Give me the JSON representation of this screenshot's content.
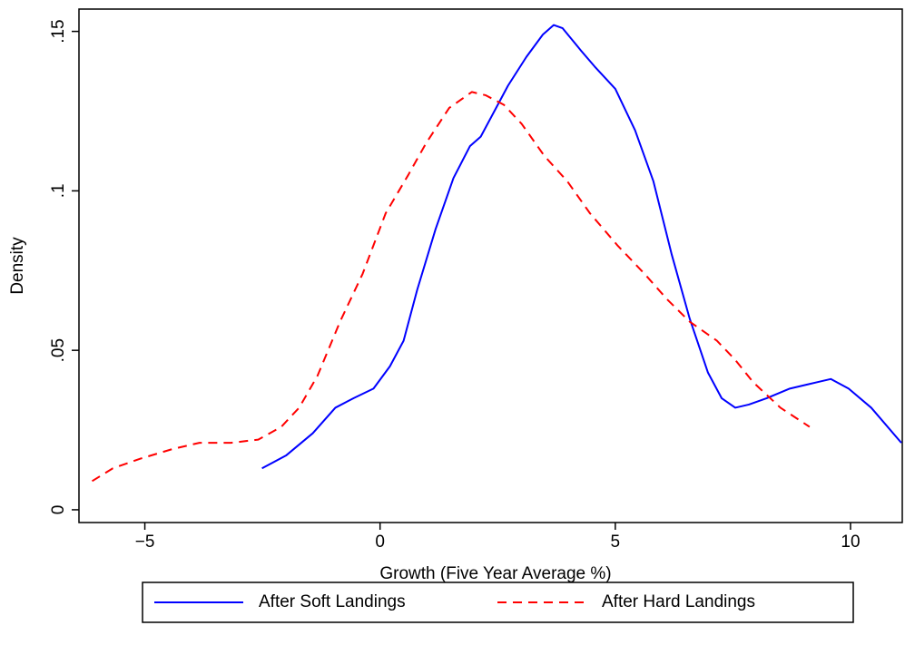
{
  "chart_data": {
    "type": "line",
    "x_label": "Growth (Five Year Average %)",
    "y_label": "Density",
    "xlim": [
      -6.4,
      11.1
    ],
    "ylim": [
      -0.004,
      0.157
    ],
    "xticks": [
      {
        "value": -5,
        "label": "−5"
      },
      0,
      5,
      10
    ],
    "yticks": [
      0,
      {
        "value": 0.05,
        "label": ".05"
      },
      {
        "value": 0.1,
        "label": ".1"
      },
      {
        "value": 0.15,
        "label": ".15"
      }
    ],
    "legend": "bottom",
    "series": [
      {
        "name": "After Soft Landings",
        "color": "#0000ff",
        "dash": false,
        "x": [
          -2.51,
          -2.0,
          -1.43,
          -0.95,
          -0.56,
          -0.14,
          0.21,
          0.5,
          0.79,
          1.18,
          1.56,
          1.91,
          2.14,
          2.43,
          2.72,
          3.11,
          3.46,
          3.69,
          3.88,
          4.27,
          4.56,
          5.0,
          5.42,
          5.81,
          6.2,
          6.58,
          6.97,
          7.26,
          7.55,
          7.84,
          8.22,
          8.71,
          9.29,
          9.58,
          9.96,
          10.44,
          11.08
        ],
        "values": [
          0.013,
          0.017,
          0.024,
          0.032,
          0.035,
          0.038,
          0.045,
          0.053,
          0.069,
          0.088,
          0.104,
          0.114,
          0.117,
          0.125,
          0.133,
          0.142,
          0.149,
          0.152,
          0.151,
          0.144,
          0.139,
          0.132,
          0.119,
          0.103,
          0.08,
          0.06,
          0.043,
          0.035,
          0.032,
          0.033,
          0.035,
          0.038,
          0.04,
          0.041,
          0.038,
          0.032,
          0.021
        ]
      },
      {
        "name": "After Hard Landings",
        "color": "#ff0000",
        "dash": true,
        "x": [
          -6.12,
          -5.68,
          -5.1,
          -4.42,
          -3.84,
          -3.17,
          -2.59,
          -2.1,
          -1.72,
          -1.33,
          -0.85,
          -0.37,
          0.12,
          0.6,
          0.98,
          1.47,
          1.95,
          2.24,
          2.63,
          3.01,
          3.49,
          3.98,
          4.46,
          5.04,
          5.62,
          6.1,
          6.58,
          7.16,
          7.55,
          7.93,
          8.51,
          9.13
        ],
        "values": [
          0.009,
          0.013,
          0.016,
          0.019,
          0.021,
          0.021,
          0.022,
          0.026,
          0.032,
          0.042,
          0.059,
          0.074,
          0.093,
          0.105,
          0.115,
          0.126,
          0.131,
          0.13,
          0.127,
          0.121,
          0.111,
          0.103,
          0.093,
          0.083,
          0.074,
          0.066,
          0.059,
          0.053,
          0.047,
          0.04,
          0.032,
          0.026
        ]
      }
    ]
  }
}
